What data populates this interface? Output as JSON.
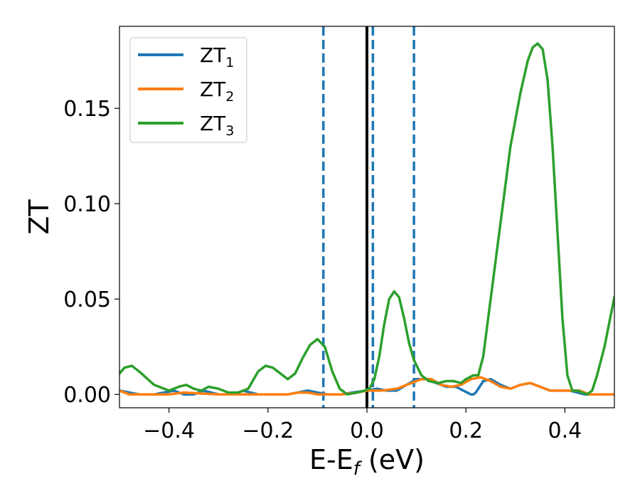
{
  "chart_data": {
    "type": "line",
    "xlabel": "E-E",
    "xlabel_sub": "f",
    "xlabel_unit": " (eV)",
    "ylabel": "ZT",
    "xlim": [
      -0.5,
      0.5
    ],
    "ylim": [
      -0.007,
      0.193
    ],
    "xticks": [
      -0.4,
      -0.2,
      0.0,
      0.2,
      0.4
    ],
    "xtick_labels": [
      "−0.4",
      "−0.2",
      "0.0",
      "0.2",
      "0.4"
    ],
    "yticks": [
      0.0,
      0.05,
      0.1,
      0.15
    ],
    "ytick_labels": [
      "0.00",
      "0.05",
      "0.10",
      "0.15"
    ],
    "grid": false,
    "legend_position": "top-left",
    "reference_lines": [
      {
        "x": -0.088,
        "style": "dashed",
        "color": "#1f77b4"
      },
      {
        "x": 0.0,
        "style": "solid",
        "color": "#000000"
      },
      {
        "x": 0.012,
        "style": "dashed",
        "color": "#1f77b4"
      },
      {
        "x": 0.095,
        "style": "dashed",
        "color": "#1f77b4"
      }
    ],
    "series": [
      {
        "name": "ZT",
        "name_sub": "1",
        "color": "#1f77b4",
        "points": [
          [
            -0.5,
            0.002
          ],
          [
            -0.48,
            0.001
          ],
          [
            -0.46,
            0.0
          ],
          [
            -0.43,
            0.0
          ],
          [
            -0.41,
            0.001
          ],
          [
            -0.39,
            0.002
          ],
          [
            -0.37,
            0.0
          ],
          [
            -0.35,
            0.0
          ],
          [
            -0.33,
            0.002
          ],
          [
            -0.3,
            0.0
          ],
          [
            -0.27,
            0.0
          ],
          [
            -0.25,
            0.002
          ],
          [
            -0.22,
            0.0
          ],
          [
            -0.19,
            0.0
          ],
          [
            -0.16,
            0.0
          ],
          [
            -0.14,
            0.001
          ],
          [
            -0.12,
            0.002
          ],
          [
            -0.1,
            0.001
          ],
          [
            -0.08,
            0.0
          ],
          [
            -0.05,
            0.0
          ],
          [
            -0.03,
            0.001
          ],
          [
            0.0,
            0.002
          ],
          [
            0.02,
            0.003
          ],
          [
            0.04,
            0.002
          ],
          [
            0.06,
            0.002
          ],
          [
            0.08,
            0.005
          ],
          [
            0.1,
            0.008
          ],
          [
            0.12,
            0.008
          ],
          [
            0.14,
            0.006
          ],
          [
            0.16,
            0.004
          ],
          [
            0.18,
            0.004
          ],
          [
            0.195,
            0.002
          ],
          [
            0.21,
            0.0
          ],
          [
            0.215,
            0.0
          ],
          [
            0.22,
            0.001
          ],
          [
            0.235,
            0.007
          ],
          [
            0.25,
            0.008
          ],
          [
            0.27,
            0.005
          ],
          [
            0.29,
            0.003
          ],
          [
            0.31,
            0.005
          ],
          [
            0.33,
            0.006
          ],
          [
            0.35,
            0.004
          ],
          [
            0.37,
            0.002
          ],
          [
            0.39,
            0.002
          ],
          [
            0.41,
            0.002
          ],
          [
            0.425,
            0.001
          ],
          [
            0.44,
            0.0
          ],
          [
            0.46,
            0.0
          ],
          [
            0.5,
            0.0
          ]
        ]
      },
      {
        "name": "ZT",
        "name_sub": "2",
        "color": "#ff7f0e",
        "points": [
          [
            -0.5,
            0.002
          ],
          [
            -0.48,
            0.0
          ],
          [
            -0.4,
            0.0
          ],
          [
            -0.37,
            0.001
          ],
          [
            -0.3,
            0.0
          ],
          [
            -0.25,
            0.0
          ],
          [
            -0.2,
            0.0
          ],
          [
            -0.16,
            0.0
          ],
          [
            -0.14,
            0.001
          ],
          [
            -0.12,
            0.001
          ],
          [
            -0.1,
            0.0
          ],
          [
            -0.05,
            0.0
          ],
          [
            -0.02,
            0.001
          ],
          [
            0.0,
            0.002
          ],
          [
            0.03,
            0.002
          ],
          [
            0.06,
            0.003
          ],
          [
            0.09,
            0.006
          ],
          [
            0.11,
            0.008
          ],
          [
            0.13,
            0.008
          ],
          [
            0.15,
            0.005
          ],
          [
            0.17,
            0.004
          ],
          [
            0.19,
            0.005
          ],
          [
            0.21,
            0.008
          ],
          [
            0.23,
            0.009
          ],
          [
            0.25,
            0.007
          ],
          [
            0.27,
            0.004
          ],
          [
            0.29,
            0.003
          ],
          [
            0.31,
            0.005
          ],
          [
            0.33,
            0.006
          ],
          [
            0.35,
            0.004
          ],
          [
            0.37,
            0.002
          ],
          [
            0.39,
            0.002
          ],
          [
            0.41,
            0.002
          ],
          [
            0.43,
            0.002
          ],
          [
            0.45,
            0.0
          ],
          [
            0.5,
            0.0
          ]
        ]
      },
      {
        "name": "ZT",
        "name_sub": "3",
        "color": "#2ca02c",
        "points": [
          [
            -0.5,
            0.011
          ],
          [
            -0.49,
            0.014
          ],
          [
            -0.475,
            0.015
          ],
          [
            -0.46,
            0.012
          ],
          [
            -0.43,
            0.005
          ],
          [
            -0.4,
            0.002
          ],
          [
            -0.38,
            0.004
          ],
          [
            -0.365,
            0.005
          ],
          [
            -0.35,
            0.003
          ],
          [
            -0.335,
            0.002
          ],
          [
            -0.32,
            0.004
          ],
          [
            -0.3,
            0.003
          ],
          [
            -0.28,
            0.001
          ],
          [
            -0.26,
            0.001
          ],
          [
            -0.24,
            0.003
          ],
          [
            -0.22,
            0.012
          ],
          [
            -0.205,
            0.015
          ],
          [
            -0.19,
            0.014
          ],
          [
            -0.175,
            0.011
          ],
          [
            -0.16,
            0.008
          ],
          [
            -0.145,
            0.011
          ],
          [
            -0.13,
            0.019
          ],
          [
            -0.115,
            0.026
          ],
          [
            -0.1,
            0.029
          ],
          [
            -0.085,
            0.025
          ],
          [
            -0.07,
            0.012
          ],
          [
            -0.055,
            0.003
          ],
          [
            -0.04,
            0.0
          ],
          [
            -0.02,
            0.001
          ],
          [
            -0.005,
            0.002
          ],
          [
            0.005,
            0.003
          ],
          [
            0.015,
            0.008
          ],
          [
            0.025,
            0.02
          ],
          [
            0.035,
            0.037
          ],
          [
            0.045,
            0.05
          ],
          [
            0.055,
            0.054
          ],
          [
            0.065,
            0.051
          ],
          [
            0.075,
            0.04
          ],
          [
            0.085,
            0.027
          ],
          [
            0.095,
            0.018
          ],
          [
            0.11,
            0.01
          ],
          [
            0.125,
            0.007
          ],
          [
            0.145,
            0.006
          ],
          [
            0.16,
            0.007
          ],
          [
            0.175,
            0.007
          ],
          [
            0.19,
            0.006
          ],
          [
            0.2,
            0.008
          ],
          [
            0.215,
            0.01
          ],
          [
            0.225,
            0.01
          ],
          [
            0.235,
            0.02
          ],
          [
            0.25,
            0.05
          ],
          [
            0.27,
            0.09
          ],
          [
            0.29,
            0.13
          ],
          [
            0.31,
            0.158
          ],
          [
            0.325,
            0.175
          ],
          [
            0.335,
            0.182
          ],
          [
            0.345,
            0.184
          ],
          [
            0.355,
            0.181
          ],
          [
            0.365,
            0.165
          ],
          [
            0.375,
            0.13
          ],
          [
            0.385,
            0.085
          ],
          [
            0.395,
            0.04
          ],
          [
            0.405,
            0.01
          ],
          [
            0.415,
            0.002
          ],
          [
            0.425,
            0.002
          ],
          [
            0.435,
            0.001
          ],
          [
            0.445,
            0.0
          ],
          [
            0.455,
            0.002
          ],
          [
            0.465,
            0.01
          ],
          [
            0.48,
            0.025
          ],
          [
            0.49,
            0.038
          ],
          [
            0.5,
            0.051
          ]
        ]
      }
    ]
  }
}
